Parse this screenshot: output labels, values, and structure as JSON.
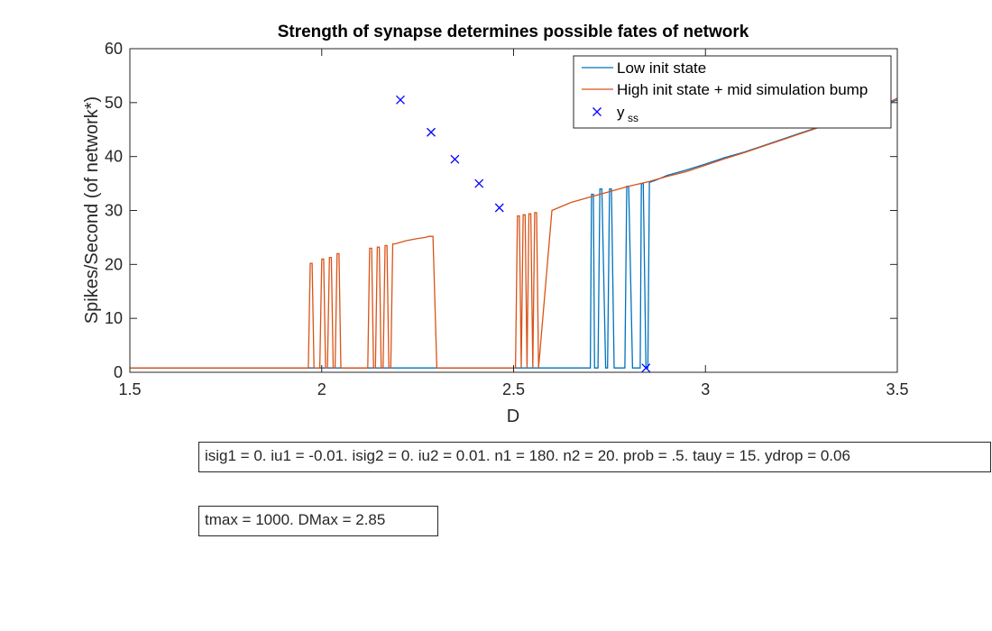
{
  "chart_data": {
    "type": "line",
    "title": "Strength of synapse determines possible fates of network",
    "xlabel": "D",
    "ylabel": "Spikes/Second (of network*)",
    "xlim": [
      1.5,
      3.5
    ],
    "ylim": [
      0,
      60
    ],
    "xticks": [
      1.5,
      2,
      2.5,
      3,
      3.5
    ],
    "xtick_labels": [
      "1.5",
      "2",
      "2.5",
      "3",
      "3.5"
    ],
    "yticks": [
      0,
      10,
      20,
      30,
      40,
      50,
      60
    ],
    "ytick_labels": [
      "0",
      "10",
      "20",
      "30",
      "40",
      "50",
      "60"
    ],
    "grid": false,
    "legend_position": "top-right",
    "series": [
      {
        "name": "Low init state",
        "color": "#0072BD",
        "style": "line",
        "x": [
          1.5,
          2.7,
          2.703,
          2.708,
          2.711,
          2.72,
          2.725,
          2.73,
          2.74,
          2.745,
          2.75,
          2.755,
          2.762,
          2.769,
          2.775,
          2.79,
          2.795,
          2.8,
          2.81,
          2.815,
          2.82,
          2.83,
          2.833,
          2.838,
          2.845,
          2.85,
          2.854,
          2.87,
          2.9,
          2.95,
          3.0,
          3.05,
          3.1,
          3.15,
          3.2,
          3.25,
          3.3,
          3.35,
          3.4,
          3.45,
          3.5
        ],
        "y": [
          0.8,
          0.8,
          33,
          33,
          0.8,
          0.8,
          34,
          34,
          0.8,
          0.8,
          34,
          34,
          0.8,
          0.8,
          0.8,
          0.8,
          34.5,
          34.5,
          0.8,
          0.8,
          0.8,
          0.8,
          35,
          35,
          0.8,
          0.8,
          35.2,
          35.6,
          36.5,
          37.5,
          38.6,
          39.8,
          40.8,
          42.0,
          43.2,
          44.4,
          45.6,
          46.8,
          48.0,
          49.2,
          50.5
        ]
      },
      {
        "name": "High init state + mid simulation bump",
        "color": "#D95319",
        "style": "line",
        "x": [
          1.5,
          1.965,
          1.97,
          1.975,
          1.98,
          1.985,
          1.995,
          2.0,
          2.005,
          2.01,
          2.015,
          2.02,
          2.025,
          2.03,
          2.035,
          2.04,
          2.045,
          2.05,
          2.12,
          2.125,
          2.13,
          2.135,
          2.14,
          2.145,
          2.15,
          2.155,
          2.16,
          2.165,
          2.17,
          2.175,
          2.18,
          2.185,
          2.19,
          2.2,
          2.21,
          2.22,
          2.25,
          2.27,
          2.28,
          2.29,
          2.3,
          2.49,
          2.495,
          2.5,
          2.505,
          2.51,
          2.515,
          2.52,
          2.525,
          2.53,
          2.535,
          2.54,
          2.545,
          2.55,
          2.555,
          2.56,
          2.565,
          2.6,
          2.65,
          2.7,
          2.75,
          2.8,
          2.85,
          2.9,
          2.95,
          3.0,
          3.05,
          3.1,
          3.15,
          3.2,
          3.25,
          3.3,
          3.35,
          3.4,
          3.45,
          3.5
        ],
        "y": [
          0.8,
          0.8,
          20.2,
          20.2,
          0.8,
          0.8,
          0.8,
          21,
          21,
          0.8,
          0.8,
          21.3,
          21.3,
          0.8,
          0.8,
          22,
          22,
          0.8,
          0.8,
          23,
          23,
          0.8,
          0.8,
          23.2,
          23.2,
          0.8,
          0.8,
          23.5,
          23.5,
          0.8,
          0.8,
          23.8,
          23.8,
          24,
          24.2,
          24.4,
          24.8,
          25,
          25.2,
          25.2,
          0.8,
          0.8,
          0.8,
          0.8,
          0.8,
          29,
          29,
          0.8,
          29.2,
          29.2,
          0.8,
          29.4,
          29.4,
          0.8,
          29.6,
          29.6,
          0.8,
          30,
          31.5,
          32.5,
          33.5,
          34.5,
          35.3,
          36.3,
          37.2,
          38.4,
          39.6,
          40.7,
          41.9,
          43.1,
          44.3,
          45.5,
          46.7,
          47.9,
          49.1,
          50.8
        ]
      },
      {
        "name": "y",
        "name_sub": "ss",
        "color": "#0000FF",
        "style": "marker",
        "x": [
          2.205,
          2.285,
          2.347,
          2.41,
          2.463,
          2.845
        ],
        "y": [
          50.5,
          44.5,
          39.5,
          35,
          30.5,
          0.8
        ]
      }
    ]
  },
  "annotations": {
    "params": "isig1 = 0. iu1 = -0.01. isig2 = 0. iu2 = 0.01. n1 = 180. n2 = 20. prob = .5. tauy = 15. ydrop = 0.06",
    "sim": "tmax = 1000. DMax = 2.85"
  }
}
